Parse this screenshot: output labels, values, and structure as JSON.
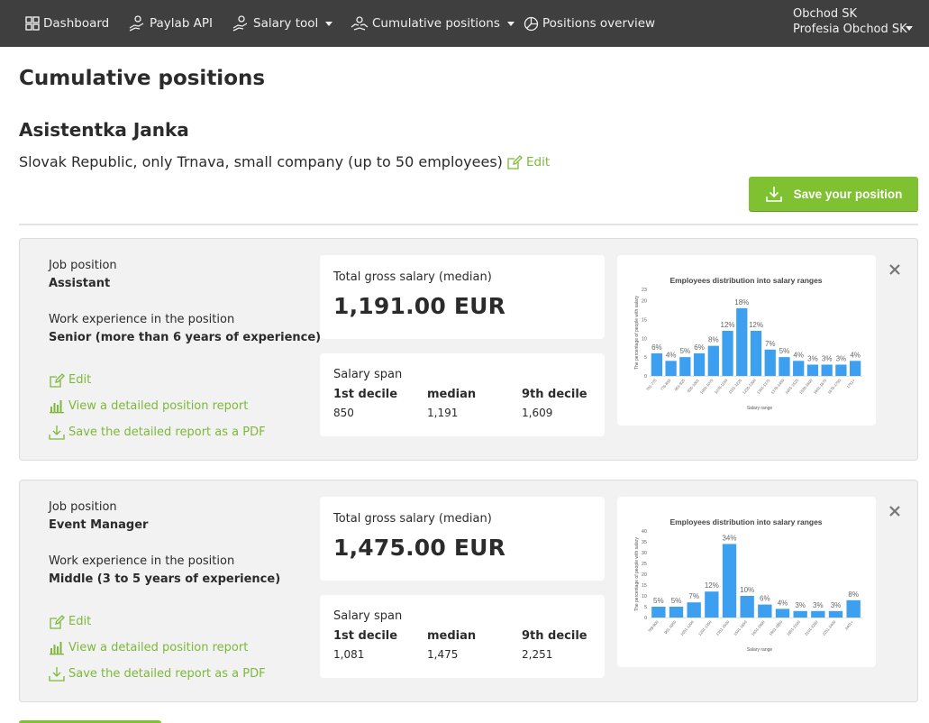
{
  "nav": {
    "items": [
      {
        "label": "Dashboard",
        "icon": "grid-icon"
      },
      {
        "label": "Paylab API",
        "icon": "hand-coin-icon"
      },
      {
        "label": "Salary tool",
        "icon": "hand-coin-icon",
        "dropdown": true
      },
      {
        "label": "Cumulative positions",
        "icon": "hands-coin-icon",
        "dropdown": true
      },
      {
        "label": "Positions overview",
        "icon": "pie-chart-icon"
      }
    ],
    "account": {
      "line1": "Obchod SK",
      "line2": "Profesia Obchod SK"
    }
  },
  "page": {
    "title": "Cumulative positions",
    "person_name": "Asistentka Janka",
    "filter_desc": "Slovak Republic, only Trnava, small company (up to 50 employees)",
    "edit_label": "Edit",
    "save_button": "Save your position"
  },
  "labels": {
    "job_position": "Job position",
    "work_experience": "Work experience in the position",
    "edit": "Edit",
    "view_report": "View a detailed position report",
    "save_pdf": "Save the detailed report as a PDF",
    "total_gross": "Total gross salary (median)",
    "salary_span": "Salary span",
    "first_decile": "1st decile",
    "median": "median",
    "ninth_decile": "9th decile"
  },
  "cards": [
    {
      "job": "Assistant",
      "experience": "Senior (more than 6 years of experience)",
      "median_salary": "1,191.00 EUR",
      "d1": "850",
      "med": "1,191",
      "d9": "1,609"
    },
    {
      "job": "Event Manager",
      "experience": "Middle (3 to 5 years of experience)",
      "median_salary": "1,475.00 EUR",
      "d1": "1,081",
      "med": "1,475",
      "d9": "2,251"
    }
  ],
  "colors": {
    "accent": "#7fc130",
    "bar": "#3d9ff0",
    "nav": "#3f3f3f"
  },
  "chart_data": [
    {
      "type": "bar",
      "title": "Employees distribution into salary ranges",
      "xlabel": "Salary range",
      "ylabel": "The percentage of people with salary",
      "ylim": [
        0,
        23
      ],
      "yticks": [
        0,
        5,
        10,
        15,
        20,
        23
      ],
      "categories": [
        "701-775",
        "776-850",
        "851-925",
        "926-1001",
        "1001-1075",
        "1076-1150",
        "1151-1225",
        "1226-1300",
        "1301-1375",
        "1376-1450",
        "1451-1525",
        "1526-1600",
        "1601-1675",
        "1676-1750",
        "1751+"
      ],
      "values": [
        6,
        4,
        5,
        6,
        8,
        12,
        18,
        12,
        7,
        5,
        4,
        3,
        3,
        3,
        4
      ],
      "data_labels": [
        "6%",
        "4%",
        "5%",
        "6%",
        "8%",
        "12%",
        "18%",
        "12%",
        "7%",
        "5%",
        "4%",
        "3%",
        "3%",
        "3%",
        "4%"
      ]
    },
    {
      "type": "bar",
      "title": "Employees distribution into salary ranges",
      "xlabel": "Salary range",
      "ylabel": "The percentage of people with salary",
      "ylim": [
        0,
        40
      ],
      "yticks": [
        0,
        5,
        10,
        15,
        20,
        25,
        30,
        35,
        40
      ],
      "categories": [
        "769-900",
        "901-1050",
        "1051-1200",
        "1201-1350",
        "1351-1500",
        "1501-1650",
        "1651-1800",
        "1801-1950",
        "1951-2100",
        "2101-2250",
        "2251-2400",
        "2401+"
      ],
      "values": [
        5,
        5,
        7,
        12,
        34,
        10,
        6,
        4,
        3,
        3,
        3,
        8
      ],
      "data_labels": [
        "5%",
        "5%",
        "7%",
        "12%",
        "34%",
        "10%",
        "6%",
        "4%",
        "3%",
        "3%",
        "3%",
        "8%"
      ]
    }
  ]
}
